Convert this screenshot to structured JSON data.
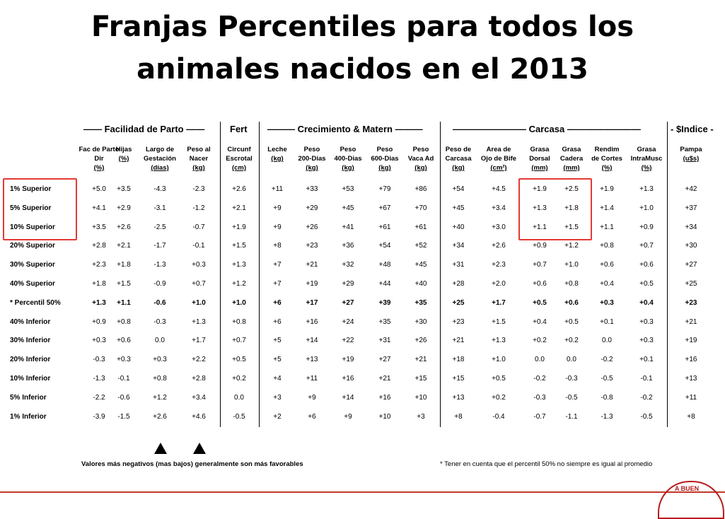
{
  "title": {
    "line1": "Franjas Percentiles para todos los",
    "line2": "animales nacidos en el 2013"
  },
  "groups": {
    "parto": "—— Facilidad de Parto ——",
    "fert": "Fert",
    "crec": "——— Crecimiento &  Matern ———",
    "carcasa": "———————— Carcasa ————————",
    "indice": "- $Indice -"
  },
  "columns": [
    {
      "l1": "Fac de Parto",
      "l2": "Dir",
      "u": "(%)"
    },
    {
      "l1": "",
      "l2": "Hijas",
      "u": "(%)"
    },
    {
      "l1": "Largo de",
      "l2": "Gestación",
      "u": "(días)"
    },
    {
      "l1": "Peso al",
      "l2": "Nacer",
      "u": "(kg)"
    },
    {
      "l1": "Circunf",
      "l2": "Escrotal",
      "u": "(cm)"
    },
    {
      "l1": "",
      "l2": "Leche",
      "u": "(kg)"
    },
    {
      "l1": "Peso",
      "l2": "200-Dias",
      "u": "(kg)"
    },
    {
      "l1": "Peso",
      "l2": "400-Dias",
      "u": "(kg)"
    },
    {
      "l1": "Peso",
      "l2": "600-Dias",
      "u": "(kg)"
    },
    {
      "l1": "Peso",
      "l2": "Vaca Ad",
      "u": "(kg)"
    },
    {
      "l1": "Peso de",
      "l2": "Carcasa",
      "u": "(kg)"
    },
    {
      "l1": "Area de",
      "l2": "Ojo de Bife",
      "u": "(cm²)"
    },
    {
      "l1": "Grasa",
      "l2": "Dorsal",
      "u": "(mm)"
    },
    {
      "l1": "Grasa",
      "l2": "Cadera",
      "u": "(mm)"
    },
    {
      "l1": "Rendim",
      "l2": "de Cortes",
      "u": "(%)"
    },
    {
      "l1": "Grasa",
      "l2": "IntraMusc",
      "u": "(%)"
    },
    {
      "l1": "Pampa",
      "l2": "",
      "u": "(u$s)"
    }
  ],
  "rows": [
    {
      "label": "1% Superior",
      "v": [
        "+5.0",
        "+3.5",
        "-4.3",
        "-2.3",
        "+2.6",
        "+11",
        "+33",
        "+53",
        "+79",
        "+86",
        "+54",
        "+4.5",
        "+1.9",
        "+2.5",
        "+1.9",
        "+1.3",
        "+42"
      ]
    },
    {
      "label": "5% Superior",
      "v": [
        "+4.1",
        "+2.9",
        "-3.1",
        "-1.2",
        "+2.1",
        "+9",
        "+29",
        "+45",
        "+67",
        "+70",
        "+45",
        "+3.4",
        "+1.3",
        "+1.8",
        "+1.4",
        "+1.0",
        "+37"
      ]
    },
    {
      "label": "10% Superior",
      "v": [
        "+3.5",
        "+2.6",
        "-2.5",
        "-0.7",
        "+1.9",
        "+9",
        "+26",
        "+41",
        "+61",
        "+61",
        "+40",
        "+3.0",
        "+1.1",
        "+1.5",
        "+1.1",
        "+0.9",
        "+34"
      ]
    },
    {
      "label": "20% Superior",
      "v": [
        "+2.8",
        "+2.1",
        "-1.7",
        "-0.1",
        "+1.5",
        "+8",
        "+23",
        "+36",
        "+54",
        "+52",
        "+34",
        "+2.6",
        "+0.9",
        "+1.2",
        "+0.8",
        "+0.7",
        "+30"
      ]
    },
    {
      "label": "30% Superior",
      "v": [
        "+2.3",
        "+1.8",
        "-1.3",
        "+0.3",
        "+1.3",
        "+7",
        "+21",
        "+32",
        "+48",
        "+45",
        "+31",
        "+2.3",
        "+0.7",
        "+1.0",
        "+0.6",
        "+0.6",
        "+27"
      ]
    },
    {
      "label": "40% Superior",
      "v": [
        "+1.8",
        "+1.5",
        "-0.9",
        "+0.7",
        "+1.2",
        "+7",
        "+19",
        "+29",
        "+44",
        "+40",
        "+28",
        "+2.0",
        "+0.6",
        "+0.8",
        "+0.4",
        "+0.5",
        "+25"
      ]
    },
    {
      "label": "* Percentil 50%",
      "v": [
        "+1.3",
        "+1.1",
        "-0.6",
        "+1.0",
        "+1.0",
        "+6",
        "+17",
        "+27",
        "+39",
        "+35",
        "+25",
        "+1.7",
        "+0.5",
        "+0.6",
        "+0.3",
        "+0.4",
        "+23"
      ],
      "bold": true
    },
    {
      "label": "40% Inferior",
      "v": [
        "+0.9",
        "+0.8",
        "-0.3",
        "+1.3",
        "+0.8",
        "+6",
        "+16",
        "+24",
        "+35",
        "+30",
        "+23",
        "+1.5",
        "+0.4",
        "+0.5",
        "+0.1",
        "+0.3",
        "+21"
      ]
    },
    {
      "label": "30% Inferior",
      "v": [
        "+0.3",
        "+0.6",
        "0.0",
        "+1.7",
        "+0.7",
        "+5",
        "+14",
        "+22",
        "+31",
        "+26",
        "+21",
        "+1.3",
        "+0.2",
        "+0.2",
        "0.0",
        "+0.3",
        "+19"
      ]
    },
    {
      "label": "20% Inferior",
      "v": [
        "-0.3",
        "+0.3",
        "+0.3",
        "+2.2",
        "+0.5",
        "+5",
        "+13",
        "+19",
        "+27",
        "+21",
        "+18",
        "+1.0",
        "0.0",
        "0.0",
        "-0.2",
        "+0.1",
        "+16"
      ]
    },
    {
      "label": "10% Inferior",
      "v": [
        "-1.3",
        "-0.1",
        "+0.8",
        "+2.8",
        "+0.2",
        "+4",
        "+11",
        "+16",
        "+21",
        "+15",
        "+15",
        "+0.5",
        "-0.2",
        "-0.3",
        "-0.5",
        "-0.1",
        "+13"
      ]
    },
    {
      "label": "5% Inferior",
      "v": [
        "-2.2",
        "-0.6",
        "+1.2",
        "+3.4",
        "0.0",
        "+3",
        "+9",
        "+14",
        "+16",
        "+10",
        "+13",
        "+0.2",
        "-0.3",
        "-0.5",
        "-0.8",
        "-0.2",
        "+11"
      ]
    },
    {
      "label": "1% Inferior",
      "v": [
        "-3.9",
        "-1.5",
        "+2.6",
        "+4.6",
        "-0.5",
        "+2",
        "+6",
        "+9",
        "+10",
        "+3",
        "+8",
        "-0.4",
        "-0.7",
        "-1.1",
        "-1.3",
        "-0.5",
        "+8"
      ]
    }
  ],
  "notes": {
    "left": "Valores más negativos (mas bajos) generalmente son más favorables",
    "right": "* Tener en cuenta que el percentil 50% no siempre es igual al promedio"
  },
  "logo_text": "A BUEN",
  "colors": {
    "highlight": "#e53935",
    "bottom_line": "#c0392b"
  }
}
